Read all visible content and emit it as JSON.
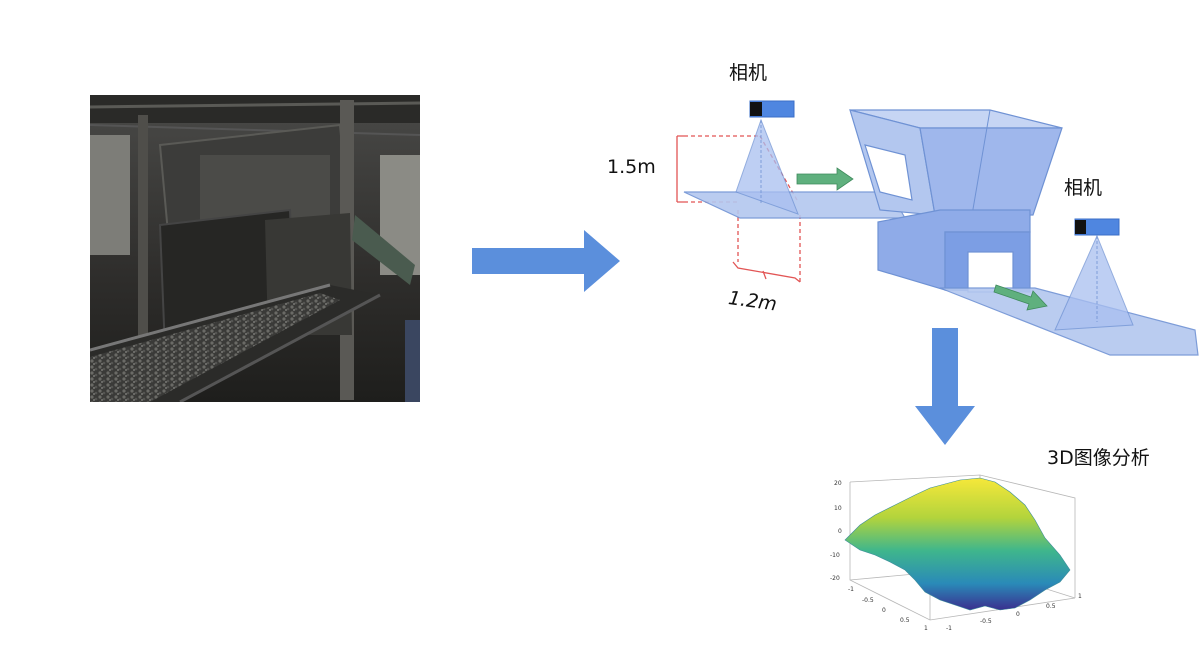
{
  "labels": {
    "camera_top": "相机",
    "camera_right": "相机",
    "height_dim": "1.5m",
    "width_dim": "1.2m",
    "analysis": "3D图像分析"
  },
  "surface_plot": {
    "z_ticks": [
      "20",
      "10",
      "0",
      "-10",
      "-20"
    ],
    "x_ticks": [
      "-1",
      "-0.5",
      "0",
      "0.5",
      "1"
    ],
    "y_ticks": [
      "1",
      "0.5",
      "0",
      "-0.5",
      "-1"
    ]
  },
  "colors": {
    "arrow_blue": "#5b8fdc",
    "conveyor_fill": "#b3c7ef",
    "conveyor_stroke": "#6f92d4",
    "hopper_fill": "#a9bff0",
    "camera_blue": "#4f86e0",
    "green_arrow": "#5fb07e",
    "dim_red": "#e25555"
  },
  "icons": {
    "photo": "industrial-conveyor-photo",
    "camera": "camera-icon",
    "process_arrow": "right-arrow-icon",
    "down_arrow": "down-arrow-icon"
  }
}
